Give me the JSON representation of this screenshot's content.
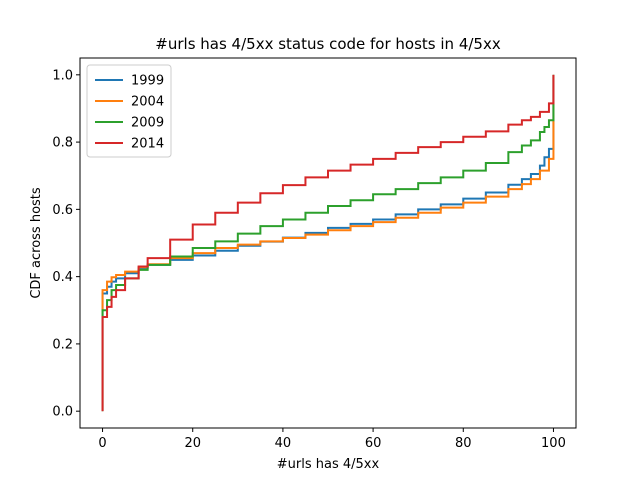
{
  "chart_data": {
    "type": "line",
    "drawstyle": "steps",
    "title": "#urls has 4/5xx status code for hosts in 4/5xx",
    "xlabel": "#urls has 4/5xx",
    "ylabel": "CDF across hosts",
    "xlim": [
      -5,
      105
    ],
    "ylim": [
      -0.05,
      1.05
    ],
    "xticks": [
      0,
      20,
      40,
      60,
      80,
      100
    ],
    "yticks": [
      0.0,
      0.2,
      0.4,
      0.6,
      0.8,
      1.0
    ],
    "legend": "top-left",
    "grid": false,
    "series": [
      {
        "name": "1999",
        "color": "#1f77b4",
        "x": [
          0,
          0,
          1,
          2,
          3,
          5,
          8,
          10,
          15,
          20,
          25,
          30,
          35,
          40,
          45,
          50,
          55,
          60,
          65,
          70,
          75,
          80,
          85,
          90,
          93,
          95,
          97,
          98,
          99,
          100,
          100
        ],
        "y": [
          0.0,
          0.35,
          0.37,
          0.385,
          0.395,
          0.41,
          0.425,
          0.435,
          0.45,
          0.463,
          0.477,
          0.492,
          0.504,
          0.516,
          0.53,
          0.545,
          0.557,
          0.57,
          0.585,
          0.6,
          0.615,
          0.632,
          0.65,
          0.673,
          0.69,
          0.705,
          0.73,
          0.755,
          0.78,
          0.82,
          1.0
        ]
      },
      {
        "name": "2004",
        "color": "#ff7f0e",
        "x": [
          0,
          0,
          1,
          2,
          3,
          5,
          8,
          10,
          15,
          20,
          25,
          30,
          35,
          40,
          45,
          50,
          55,
          60,
          65,
          70,
          75,
          80,
          85,
          90,
          93,
          95,
          97,
          99,
          100,
          100
        ],
        "y": [
          0.0,
          0.36,
          0.385,
          0.398,
          0.405,
          0.415,
          0.428,
          0.437,
          0.455,
          0.47,
          0.485,
          0.495,
          0.505,
          0.515,
          0.525,
          0.538,
          0.55,
          0.562,
          0.575,
          0.59,
          0.605,
          0.62,
          0.638,
          0.66,
          0.675,
          0.69,
          0.715,
          0.75,
          0.8,
          1.0
        ]
      },
      {
        "name": "2009",
        "color": "#2ca02c",
        "x": [
          0,
          0,
          1,
          2,
          3,
          5,
          8,
          10,
          15,
          20,
          25,
          30,
          35,
          40,
          45,
          50,
          55,
          60,
          65,
          70,
          75,
          80,
          85,
          90,
          93,
          95,
          97,
          98,
          99,
          100,
          100
        ],
        "y": [
          0.0,
          0.3,
          0.33,
          0.36,
          0.375,
          0.395,
          0.42,
          0.435,
          0.46,
          0.485,
          0.505,
          0.528,
          0.55,
          0.57,
          0.59,
          0.61,
          0.627,
          0.645,
          0.66,
          0.678,
          0.695,
          0.715,
          0.738,
          0.77,
          0.79,
          0.805,
          0.83,
          0.845,
          0.865,
          0.9,
          1.0
        ]
      },
      {
        "name": "2014",
        "color": "#d62728",
        "x": [
          0,
          0,
          1,
          2,
          3,
          5,
          8,
          10,
          15,
          20,
          25,
          30,
          35,
          40,
          45,
          50,
          55,
          60,
          65,
          70,
          75,
          80,
          85,
          90,
          93,
          95,
          97,
          99,
          100,
          100
        ],
        "y": [
          0.0,
          0.28,
          0.31,
          0.34,
          0.36,
          0.395,
          0.43,
          0.455,
          0.51,
          0.555,
          0.59,
          0.62,
          0.648,
          0.672,
          0.695,
          0.715,
          0.733,
          0.75,
          0.768,
          0.785,
          0.8,
          0.816,
          0.832,
          0.852,
          0.865,
          0.875,
          0.89,
          0.915,
          0.945,
          1.0
        ]
      }
    ]
  }
}
